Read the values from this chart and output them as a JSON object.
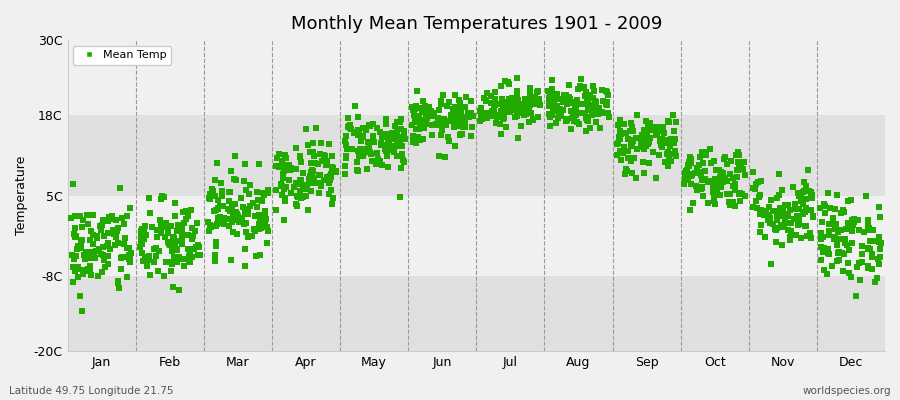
{
  "title": "Monthly Mean Temperatures 1901 - 2009",
  "ylabel": "Temperature",
  "xlabel_bottom_left": "Latitude 49.75 Longitude 21.75",
  "xlabel_bottom_right": "worldspecies.org",
  "legend_label": "Mean Temp",
  "dot_color": "#22aa00",
  "background_color": "#f0f0f0",
  "plot_bg_color": "#f0f0f0",
  "band_color_dark": "#e0e0e0",
  "band_color_light": "#f0f0f0",
  "yticks": [
    -20,
    -8,
    5,
    18,
    30
  ],
  "ytick_labels": [
    "-20C",
    "-8C",
    "5C",
    "18C",
    "30C"
  ],
  "ylim": [
    -20,
    30
  ],
  "months": [
    "Jan",
    "Feb",
    "Mar",
    "Apr",
    "May",
    "Jun",
    "Jul",
    "Aug",
    "Sep",
    "Oct",
    "Nov",
    "Dec"
  ],
  "month_means": [
    -3.5,
    -2.8,
    2.5,
    8.5,
    13.5,
    17.0,
    19.5,
    19.0,
    13.5,
    8.0,
    2.5,
    -2.0
  ],
  "month_stds": [
    3.8,
    3.5,
    3.2,
    2.8,
    2.5,
    2.0,
    1.8,
    1.8,
    2.5,
    2.5,
    3.0,
    3.5
  ],
  "n_years": 109,
  "seed": 42,
  "marker_size": 14,
  "dpi": 100,
  "figsize": [
    9.0,
    4.0
  ]
}
